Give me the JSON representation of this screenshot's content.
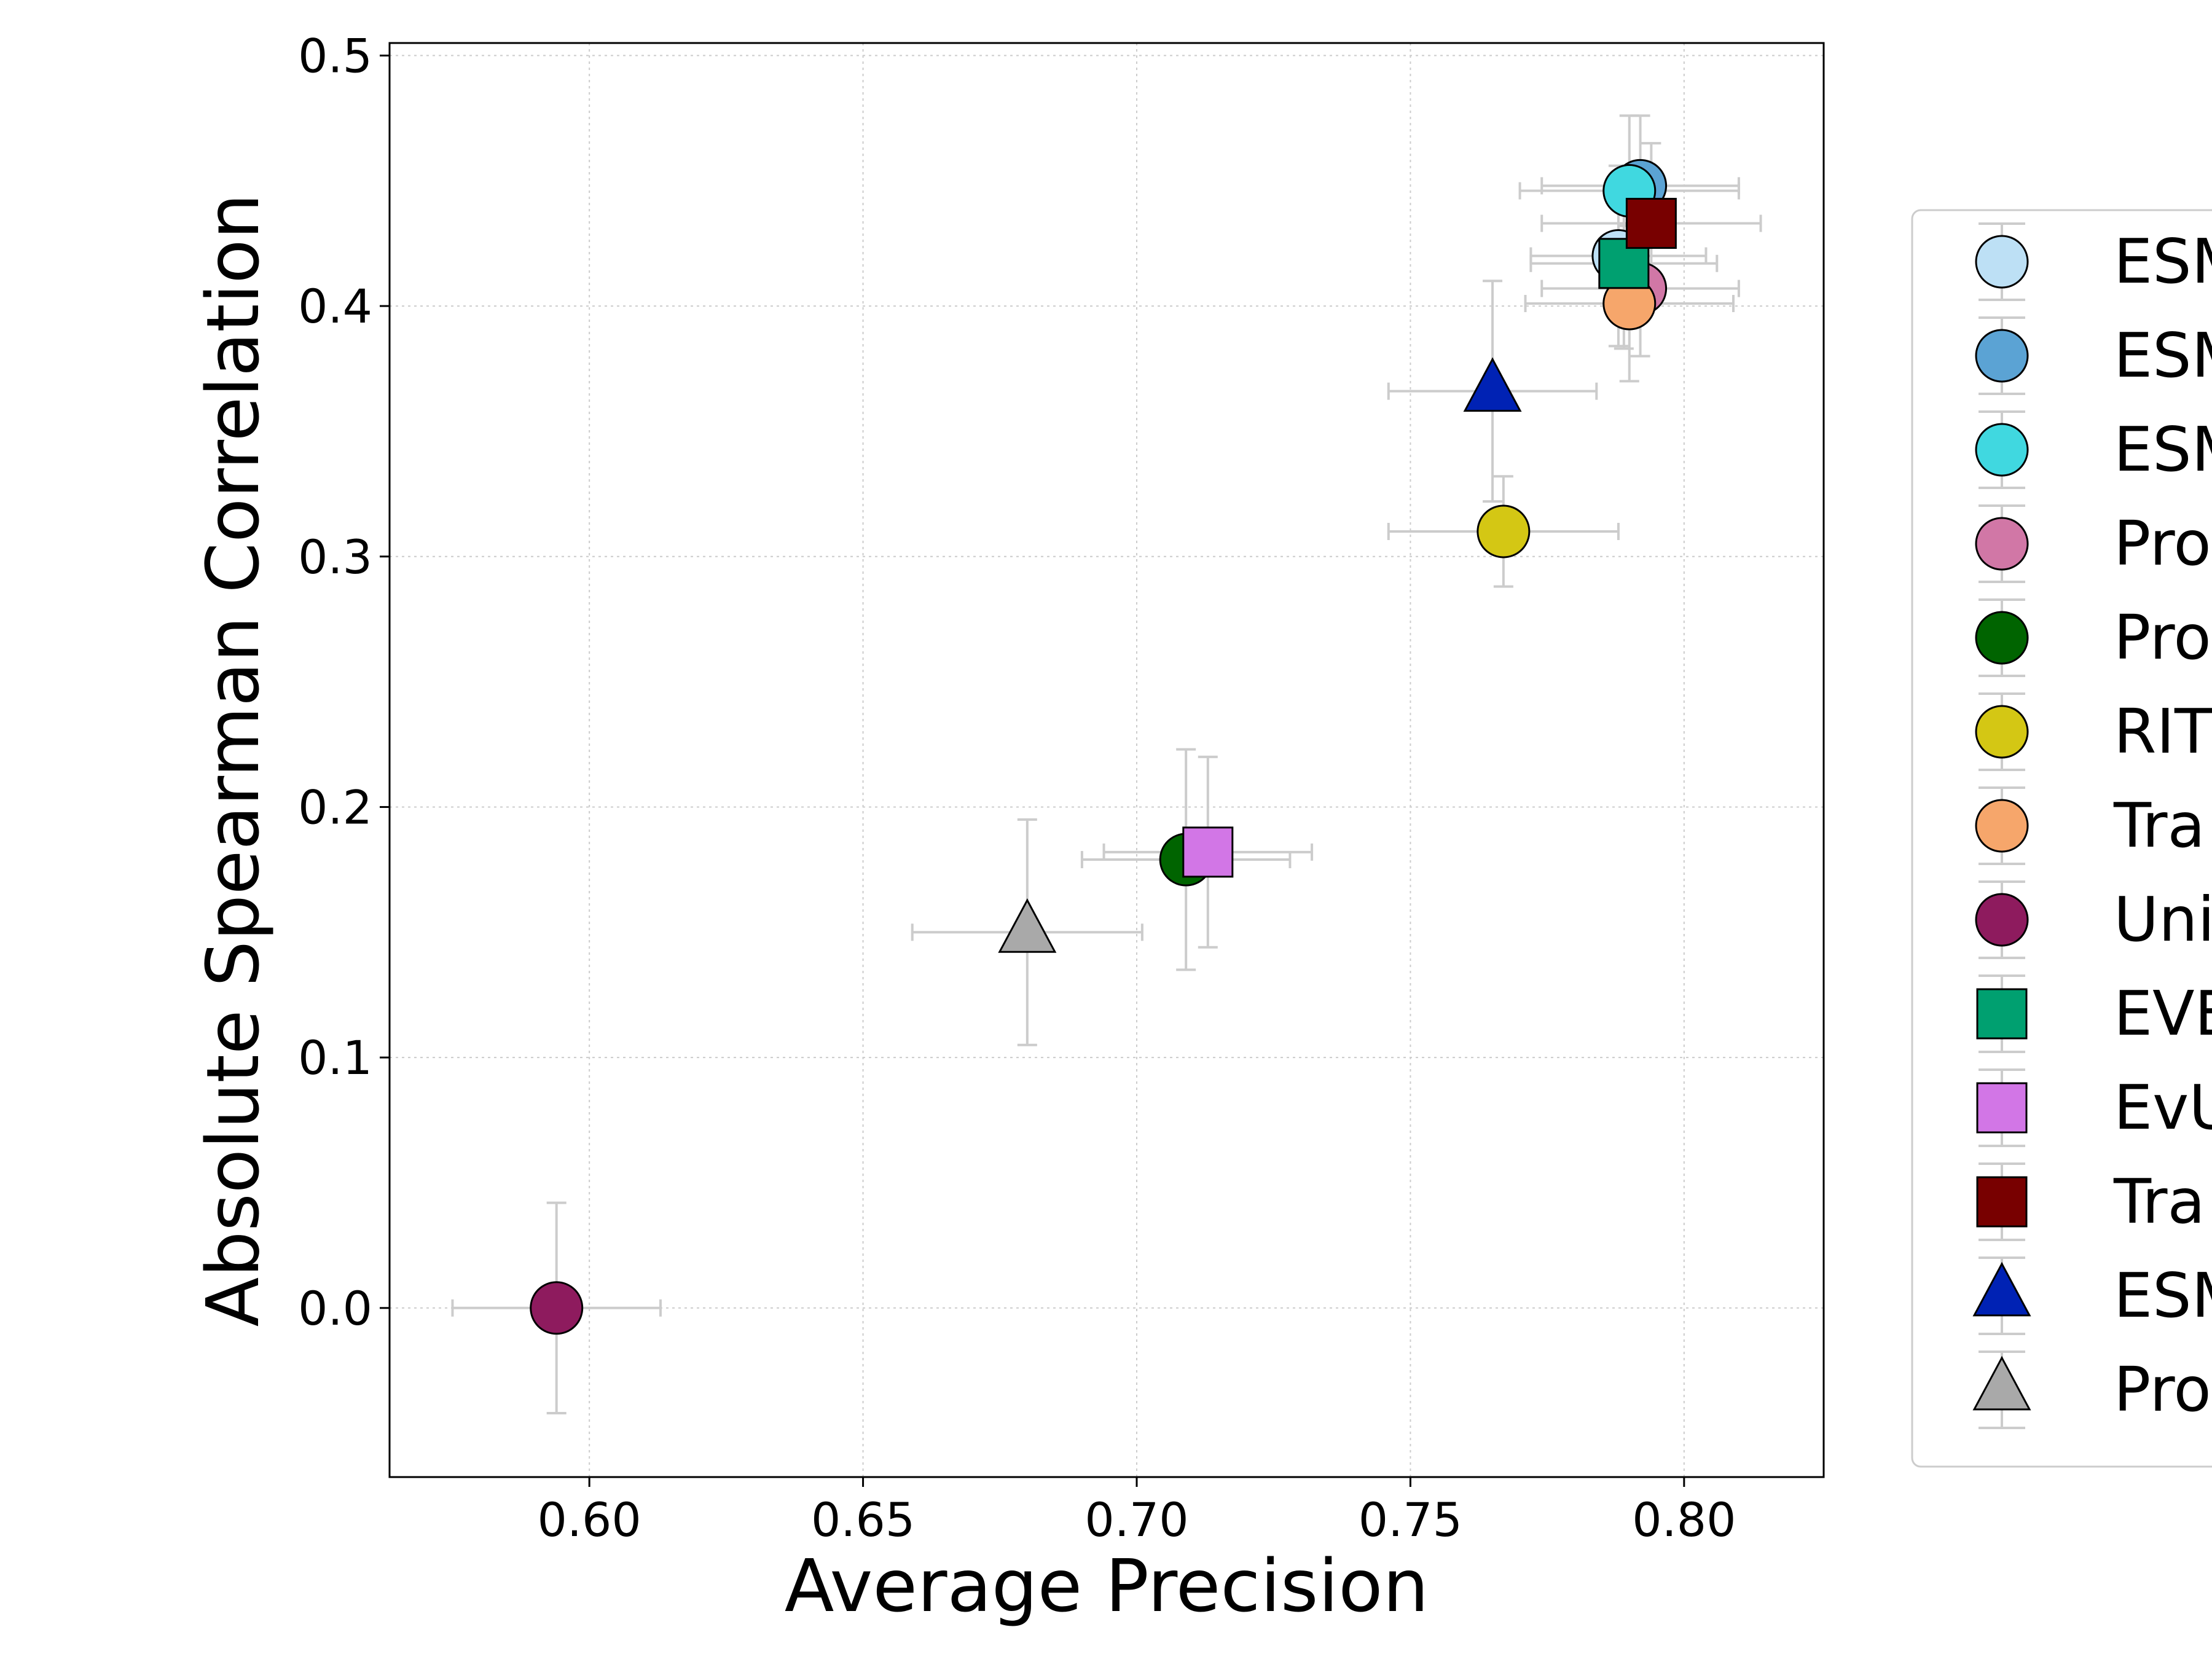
{
  "chart_data": {
    "type": "scatter",
    "title": "",
    "xlabel": "Average Precision",
    "ylabel": "Absolute Spearman Correlation",
    "xlim": [
      0.5635,
      0.8255
    ],
    "ylim": [
      -0.0675,
      0.505
    ],
    "xticks": [
      0.6,
      0.65,
      0.7,
      0.75,
      0.8
    ],
    "xtick_labels": [
      "0.60",
      "0.65",
      "0.70",
      "0.75",
      "0.80"
    ],
    "yticks": [
      0.0,
      0.1,
      0.2,
      0.3,
      0.4,
      0.5
    ],
    "ytick_labels": [
      "0.0",
      "0.1",
      "0.2",
      "0.3",
      "0.4",
      "0.5"
    ],
    "grid": true,
    "legend_position": "right",
    "series": [
      {
        "name": "ESM",
        "marker": "circle",
        "color": "#bde0f5",
        "x": 0.788,
        "y": 0.42,
        "xerr": 0.016,
        "yerr": 0.036
      },
      {
        "name": "ESM",
        "marker": "circle",
        "color": "#5ba3d4",
        "x": 0.792,
        "y": 0.448,
        "xerr": 0.018,
        "yerr": 0.028
      },
      {
        "name": "ESM",
        "marker": "circle",
        "color": "#40d8e0",
        "x": 0.79,
        "y": 0.446,
        "xerr": 0.02,
        "yerr": 0.03
      },
      {
        "name": "Pro",
        "marker": "circle",
        "color": "#d177a6",
        "x": 0.792,
        "y": 0.407,
        "xerr": 0.018,
        "yerr": 0.027
      },
      {
        "name": "Pro",
        "marker": "circle",
        "color": "#006400",
        "x": 0.709,
        "y": 0.179,
        "xerr": 0.019,
        "yerr": 0.044
      },
      {
        "name": "RIT",
        "marker": "circle",
        "color": "#d4c714",
        "x": 0.767,
        "y": 0.31,
        "xerr": 0.021,
        "yerr": 0.022
      },
      {
        "name": "Tra",
        "marker": "circle",
        "color": "#f6a66b",
        "x": 0.79,
        "y": 0.401,
        "xerr": 0.019,
        "yerr": 0.031
      },
      {
        "name": "Uni",
        "marker": "circle",
        "color": "#8e1b5e",
        "x": 0.594,
        "y": 0.0,
        "xerr": 0.019,
        "yerr": 0.042
      },
      {
        "name": "EVE",
        "marker": "square",
        "color": "#00a070",
        "x": 0.789,
        "y": 0.417,
        "xerr": 0.017,
        "yerr": 0.034
      },
      {
        "name": "EvU",
        "marker": "square",
        "color": "#d276e6",
        "x": 0.713,
        "y": 0.182,
        "xerr": 0.019,
        "yerr": 0.038
      },
      {
        "name": "Tra",
        "marker": "square",
        "color": "#780000",
        "x": 0.794,
        "y": 0.433,
        "xerr": 0.02,
        "yerr": 0.032
      },
      {
        "name": "ESM",
        "marker": "triangle",
        "color": "#0022b4",
        "x": 0.765,
        "y": 0.366,
        "xerr": 0.019,
        "yerr": 0.044
      },
      {
        "name": "Pro",
        "marker": "triangle",
        "color": "#a9a9a9",
        "x": 0.68,
        "y": 0.15,
        "xerr": 0.021,
        "yerr": 0.045
      }
    ]
  }
}
